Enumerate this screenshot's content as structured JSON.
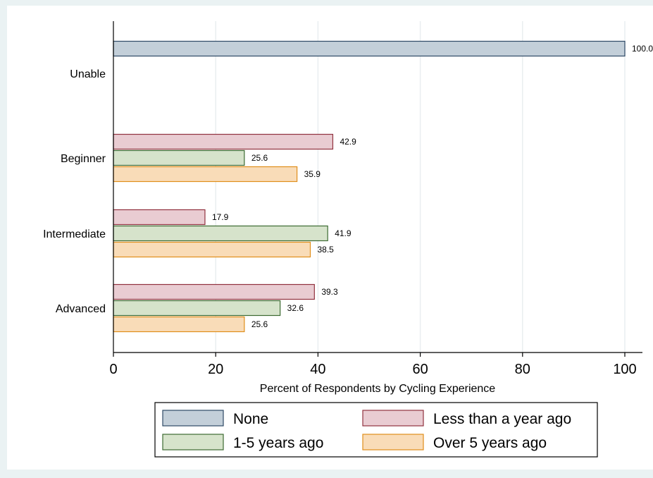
{
  "chart_data": {
    "type": "bar",
    "orientation": "horizontal",
    "xlabel": "Percent of Respondents by Cycling Experience",
    "xlim": [
      0,
      100
    ],
    "xticks": [
      0,
      20,
      40,
      60,
      80,
      100
    ],
    "grid": true,
    "legend_position": "bottom",
    "categories": [
      {
        "label": "Unable",
        "bars": [
          {
            "series": "None",
            "value": 100.0,
            "label": "100.0"
          }
        ]
      },
      {
        "label": "Beginner",
        "bars": [
          {
            "series": "Less than a year ago",
            "value": 42.9,
            "label": "42.9"
          },
          {
            "series": "1-5 years ago",
            "value": 25.6,
            "label": "25.6"
          },
          {
            "series": "Over 5 years ago",
            "value": 35.9,
            "label": "35.9"
          }
        ]
      },
      {
        "label": "Intermediate",
        "bars": [
          {
            "series": "Less than a year ago",
            "value": 17.9,
            "label": "17.9"
          },
          {
            "series": "1-5 years ago",
            "value": 41.9,
            "label": "41.9"
          },
          {
            "series": "Over 5 years ago",
            "value": 38.5,
            "label": "38.5"
          }
        ]
      },
      {
        "label": "Advanced",
        "bars": [
          {
            "series": "Less than a year ago",
            "value": 39.3,
            "label": "39.3"
          },
          {
            "series": "1-5 years ago",
            "value": 32.6,
            "label": "32.6"
          },
          {
            "series": "Over 5 years ago",
            "value": 25.6,
            "label": "25.6"
          }
        ]
      }
    ],
    "series": [
      {
        "name": "None",
        "fill": "#c3cfd9",
        "stroke": "#2e4a66"
      },
      {
        "name": "Less than a year ago",
        "fill": "#e9ccd2",
        "stroke": "#91323f"
      },
      {
        "name": "1-5 years ago",
        "fill": "#d6e3cb",
        "stroke": "#3d6b32"
      },
      {
        "name": "Over 5 years ago",
        "fill": "#f9dcb8",
        "stroke": "#e08e1b"
      }
    ]
  }
}
